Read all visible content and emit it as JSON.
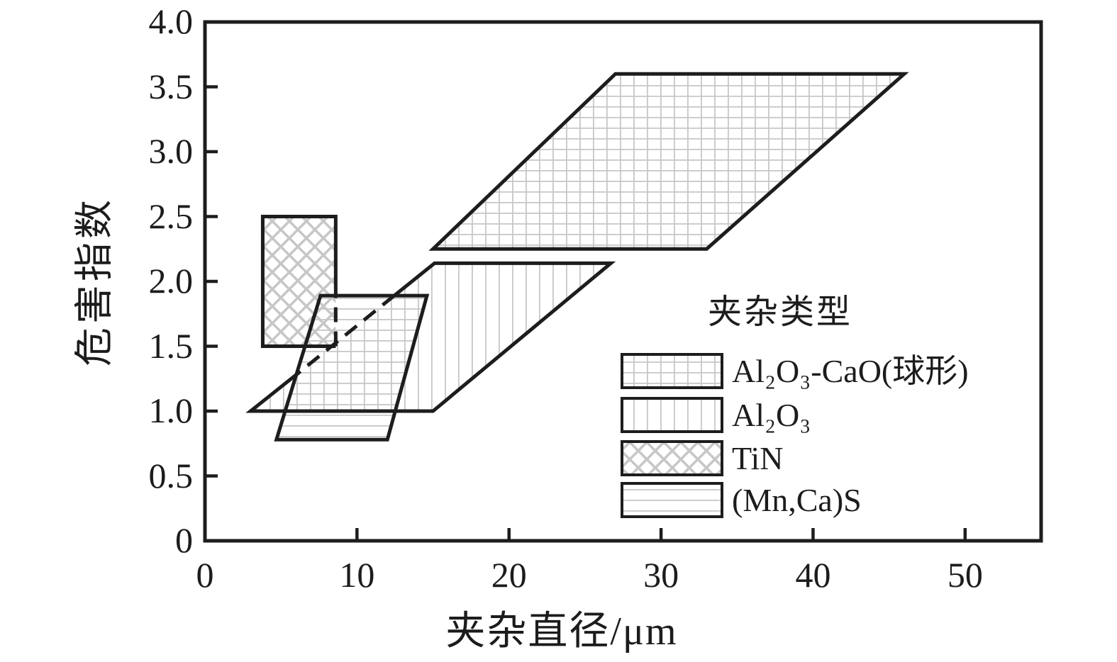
{
  "figure": {
    "background": "#ffffff",
    "frame_color": "#1d1d1d",
    "pattern_color": "#c7c7c7"
  },
  "axes": {
    "x": {
      "title": "夹杂直径/μm",
      "lim": [
        0,
        55
      ],
      "ticks": [
        {
          "v": 0,
          "label": "0",
          "mark": false
        },
        {
          "v": 10,
          "label": "10",
          "mark": true
        },
        {
          "v": 20,
          "label": "20",
          "mark": true
        },
        {
          "v": 30,
          "label": "30",
          "mark": true
        },
        {
          "v": 40,
          "label": "40",
          "mark": true
        },
        {
          "v": 50,
          "label": "50",
          "mark": true
        }
      ]
    },
    "y": {
      "title": "危害指数",
      "lim": [
        0,
        4
      ],
      "ticks": [
        {
          "v": 0,
          "label": "0",
          "mark": false
        },
        {
          "v": 0.5,
          "label": "0.5",
          "mark": true
        },
        {
          "v": 1,
          "label": "1.0",
          "mark": true
        },
        {
          "v": 1.5,
          "label": "1.5",
          "mark": true
        },
        {
          "v": 2,
          "label": "2.0",
          "mark": true
        },
        {
          "v": 2.5,
          "label": "2.5",
          "mark": true
        },
        {
          "v": 3,
          "label": "3.0",
          "mark": true
        },
        {
          "v": 3.5,
          "label": "3.5",
          "mark": true
        },
        {
          "v": 4,
          "label": "4.0",
          "mark": false
        }
      ]
    }
  },
  "legend": {
    "title": "夹杂类型",
    "items": [
      {
        "id": "al2o3-cao",
        "label": "Al₂O₃-CaO(球形)",
        "pattern": "grid"
      },
      {
        "id": "al2o3",
        "label": "Al₂O₃",
        "pattern": "vertical"
      },
      {
        "id": "tin",
        "label": "TiN",
        "pattern": "diagcross"
      },
      {
        "id": "mncas",
        "label": "(Mn,Ca)S",
        "pattern": "horizontal"
      }
    ]
  },
  "chart_data": {
    "type": "area",
    "title": "",
    "xlabel": "夹杂直径/μm",
    "ylabel": "危害指数",
    "xlim": [
      0,
      55
    ],
    "ylim": [
      0,
      4
    ],
    "x_ticks": [
      0,
      10,
      20,
      30,
      40,
      50
    ],
    "y_ticks": [
      0,
      0.5,
      1,
      1.5,
      2,
      2.5,
      3,
      3.5,
      4
    ],
    "grid": false,
    "legend_position": "inside lower right",
    "regions": [
      {
        "id": "al2o3-cao",
        "name": "Al₂O₃-CaO(球形)",
        "pattern": "grid",
        "polygon": [
          [
            15,
            2.25
          ],
          [
            33,
            2.25
          ],
          [
            46,
            3.6
          ],
          [
            27,
            3.6
          ]
        ],
        "border": [
          {
            "dashed": false,
            "close": true,
            "points": [
              [
                15,
                2.25
              ],
              [
                33,
                2.25
              ],
              [
                46,
                3.6
              ],
              [
                27,
                3.6
              ]
            ]
          }
        ]
      },
      {
        "id": "al2o3",
        "name": "Al₂O₃",
        "pattern": "vertical",
        "polygon": [
          [
            3,
            1.0
          ],
          [
            15,
            1.0
          ],
          [
            26.7,
            2.14
          ],
          [
            15.1,
            2.14
          ]
        ],
        "border": [
          {
            "dashed": false,
            "close": false,
            "points": [
              [
                6.0,
                1.28
              ],
              [
                3,
                1.0
              ],
              [
                15,
                1.0
              ],
              [
                26.7,
                2.14
              ],
              [
                15.1,
                2.14
              ],
              [
                12.45,
                1.89
              ]
            ]
          },
          {
            "dashed": true,
            "close": false,
            "points": [
              [
                12.45,
                1.89
              ],
              [
                6.0,
                1.28
              ]
            ]
          }
        ]
      },
      {
        "id": "tin",
        "name": "TiN",
        "pattern": "diagcross",
        "polygon": [
          [
            3.8,
            1.5
          ],
          [
            8.6,
            1.5
          ],
          [
            8.6,
            2.5
          ],
          [
            3.8,
            2.5
          ]
        ],
        "border": [
          {
            "dashed": false,
            "close": false,
            "points": [
              [
                8.6,
                1.89
              ],
              [
                8.6,
                2.5
              ],
              [
                3.8,
                2.5
              ],
              [
                3.8,
                1.5
              ],
              [
                8.6,
                1.5
              ]
            ]
          },
          {
            "dashed": true,
            "close": false,
            "points": [
              [
                8.6,
                1.5
              ],
              [
                8.6,
                1.89
              ]
            ]
          }
        ]
      },
      {
        "id": "mncas",
        "name": "(Mn,Ca)S",
        "pattern": "horizontal",
        "polygon": [
          [
            4.7,
            0.78
          ],
          [
            12.0,
            0.78
          ],
          [
            14.6,
            1.89
          ],
          [
            7.6,
            1.89
          ]
        ],
        "border": [
          {
            "dashed": false,
            "close": true,
            "points": [
              [
                4.7,
                0.78
              ],
              [
                12.0,
                0.78
              ],
              [
                14.6,
                1.89
              ],
              [
                7.6,
                1.89
              ]
            ]
          }
        ]
      }
    ]
  }
}
